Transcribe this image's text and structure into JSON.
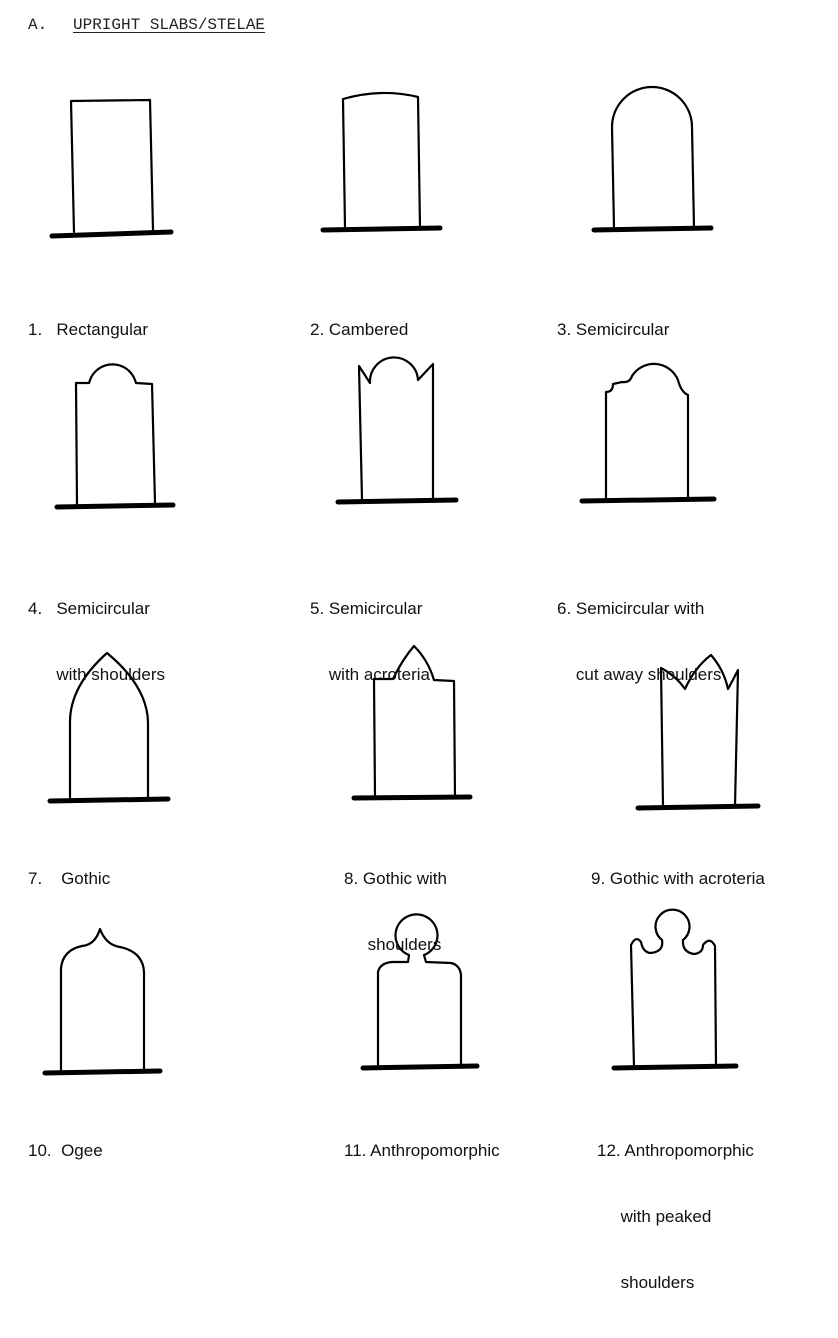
{
  "section": {
    "letter": "A.",
    "title": "UPRIGHT SLABS/STELAE"
  },
  "shapes": [
    {
      "id": "rectangular",
      "label_lines": [
        "1.   Rectangular"
      ]
    },
    {
      "id": "cambered",
      "label_lines": [
        "2. Cambered"
      ]
    },
    {
      "id": "semicircular",
      "label_lines": [
        "3. Semicircular"
      ]
    },
    {
      "id": "semicircular-shoulders",
      "label_lines": [
        "4.   Semicircular",
        "      with shoulders"
      ]
    },
    {
      "id": "semicircular-acroteria",
      "label_lines": [
        "5. Semicircular",
        "    with acroteria"
      ]
    },
    {
      "id": "semicircular-cutaway",
      "label_lines": [
        "6. Semicircular with",
        "    cut away shoulders"
      ]
    },
    {
      "id": "gothic",
      "label_lines": [
        "7.    Gothic"
      ]
    },
    {
      "id": "gothic-shoulders",
      "label_lines": [
        "8. Gothic with",
        "     shoulders"
      ]
    },
    {
      "id": "gothic-acroteria",
      "label_lines": [
        "9. Gothic with acroteria"
      ]
    },
    {
      "id": "ogee",
      "label_lines": [
        "10.  Ogee"
      ]
    },
    {
      "id": "anthropomorphic",
      "label_lines": [
        "11. Anthropomorphic"
      ]
    },
    {
      "id": "anthropomorphic-peaked",
      "label_lines": [
        "12. Anthropomorphic",
        "     with peaked",
        "     shoulders"
      ]
    }
  ]
}
